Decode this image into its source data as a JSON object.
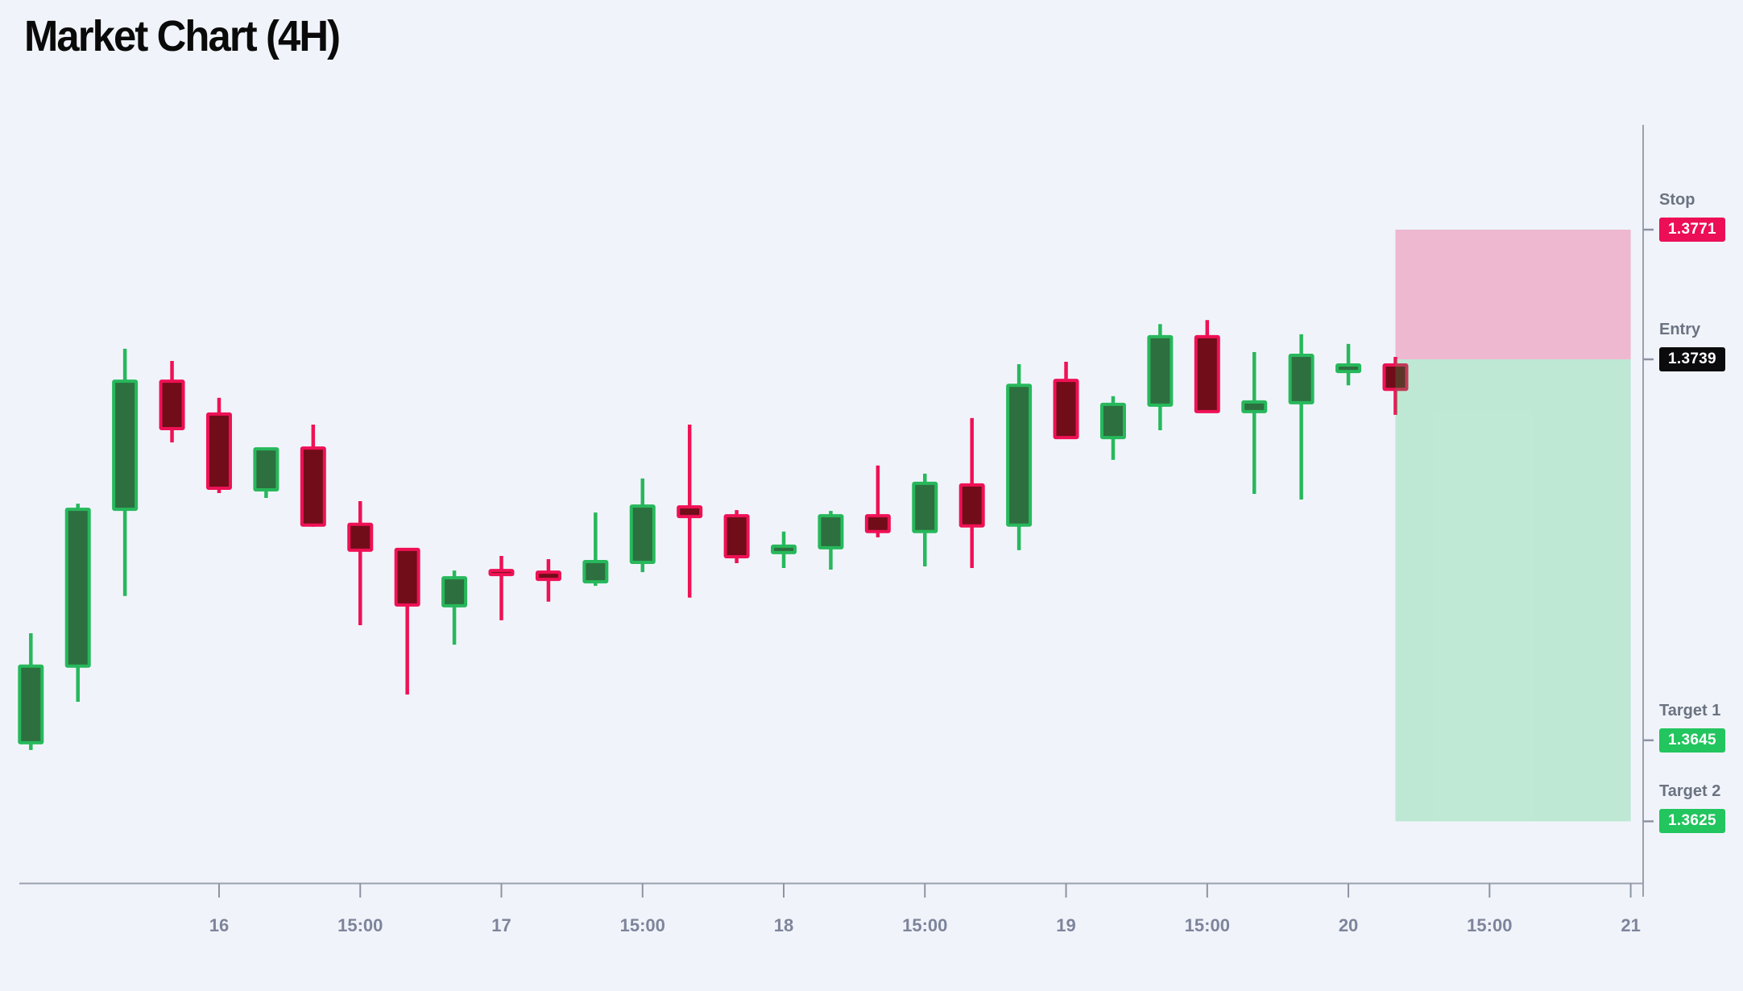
{
  "title": "Market Chart (4H)",
  "colors": {
    "background": "#f0f4fa",
    "title_color": "#0a0a0a",
    "up_fill": "#2d6f3f",
    "up_stroke": "#27b85c",
    "down_fill": "#700d19",
    "down_stroke": "#ef1155",
    "risk_zone": "rgba(233,30,99,0.28)",
    "reward_zone": "rgba(34,197,94,0.24)",
    "axis_line": "#9aa0af",
    "axis_tick": "#8d93a3",
    "tick_label": "#7e849b",
    "level_label": "#6b7280",
    "badge_stop": "#ec0e56",
    "badge_entry": "#0b0b0e",
    "badge_target": "#22c55e",
    "badge_text": "#ffffff"
  },
  "chart_data": {
    "type": "candlestick",
    "timeframe": "4H",
    "title": "Market Chart (4H)",
    "x_ticks": [
      {
        "i": 4,
        "label": "16"
      },
      {
        "i": 7,
        "label": "15:00"
      },
      {
        "i": 10,
        "label": "17"
      },
      {
        "i": 13,
        "label": "15:00"
      },
      {
        "i": 16,
        "label": "18"
      },
      {
        "i": 19,
        "label": "15:00"
      },
      {
        "i": 22,
        "label": "19"
      },
      {
        "i": 25,
        "label": "15:00"
      },
      {
        "i": 28,
        "label": "20"
      },
      {
        "i": 31,
        "label": "15:00"
      },
      {
        "i": 34,
        "label": "21"
      }
    ],
    "candles": [
      {
        "o": 1.36444,
        "h": 1.36714,
        "l": 1.36426,
        "c": 1.36633
      },
      {
        "o": 1.36633,
        "h": 1.37034,
        "l": 1.36545,
        "c": 1.3702
      },
      {
        "o": 1.3702,
        "h": 1.37416,
        "l": 1.36806,
        "c": 1.37336
      },
      {
        "o": 1.37336,
        "h": 1.37386,
        "l": 1.37185,
        "c": 1.37219
      },
      {
        "o": 1.37255,
        "h": 1.37295,
        "l": 1.3706,
        "c": 1.37072
      },
      {
        "o": 1.37068,
        "h": 1.37169,
        "l": 1.37048,
        "c": 1.37169
      },
      {
        "o": 1.37171,
        "h": 1.37229,
        "l": 1.36977,
        "c": 1.36981
      },
      {
        "o": 1.36983,
        "h": 1.3704,
        "l": 1.36734,
        "c": 1.36919
      },
      {
        "o": 1.36921,
        "h": 1.36921,
        "l": 1.36563,
        "c": 1.36784
      },
      {
        "o": 1.36782,
        "h": 1.36869,
        "l": 1.36686,
        "c": 1.36851
      },
      {
        "o": 1.36869,
        "h": 1.36905,
        "l": 1.36746,
        "c": 1.36859
      },
      {
        "o": 1.36865,
        "h": 1.36897,
        "l": 1.36792,
        "c": 1.36847
      },
      {
        "o": 1.36841,
        "h": 1.37012,
        "l": 1.36831,
        "c": 1.36891
      },
      {
        "o": 1.36889,
        "h": 1.37096,
        "l": 1.36865,
        "c": 1.37028
      },
      {
        "o": 1.37026,
        "h": 1.37229,
        "l": 1.36802,
        "c": 1.37002
      },
      {
        "o": 1.37004,
        "h": 1.37018,
        "l": 1.36887,
        "c": 1.36903
      },
      {
        "o": 1.36913,
        "h": 1.36965,
        "l": 1.36875,
        "c": 1.36929
      },
      {
        "o": 1.36925,
        "h": 1.37016,
        "l": 1.36871,
        "c": 1.37004
      },
      {
        "o": 1.37004,
        "h": 1.37128,
        "l": 1.36951,
        "c": 1.36965
      },
      {
        "o": 1.36965,
        "h": 1.37108,
        "l": 1.36879,
        "c": 1.37084
      },
      {
        "o": 1.3708,
        "h": 1.37245,
        "l": 1.36875,
        "c": 1.36979
      },
      {
        "o": 1.36981,
        "h": 1.37378,
        "l": 1.36919,
        "c": 1.37326
      },
      {
        "o": 1.37338,
        "h": 1.37384,
        "l": 1.37197,
        "c": 1.37197
      },
      {
        "o": 1.37197,
        "h": 1.37299,
        "l": 1.37142,
        "c": 1.37279
      },
      {
        "o": 1.37277,
        "h": 1.37477,
        "l": 1.37215,
        "c": 1.37446
      },
      {
        "o": 1.37446,
        "h": 1.37487,
        "l": 1.37261,
        "c": 1.37261
      },
      {
        "o": 1.37261,
        "h": 1.37408,
        "l": 1.37058,
        "c": 1.37285
      },
      {
        "o": 1.37283,
        "h": 1.37452,
        "l": 1.37044,
        "c": 1.374
      },
      {
        "o": 1.3736,
        "h": 1.37428,
        "l": 1.37326,
        "c": 1.37376
      },
      {
        "o": 1.37376,
        "h": 1.37396,
        "l": 1.37253,
        "c": 1.37316
      }
    ],
    "levels": [
      {
        "id": "stop",
        "label": "Stop",
        "price": 1.3771,
        "display": "1.3771",
        "badge": "badge_stop"
      },
      {
        "id": "entry",
        "label": "Entry",
        "price": 1.3739,
        "display": "1.3739",
        "badge": "badge_entry"
      },
      {
        "id": "target1",
        "label": "Target 1",
        "price": 1.3645,
        "display": "1.3645",
        "badge": "badge_target"
      },
      {
        "id": "target2",
        "label": "Target 2",
        "price": 1.3625,
        "display": "1.3625",
        "badge": "badge_target"
      }
    ],
    "zones": [
      {
        "id": "risk",
        "top_price": 1.3771,
        "bottom_price": 1.3739,
        "from_candle": 29,
        "to_tick": 34,
        "color": "risk_zone"
      },
      {
        "id": "reward",
        "top_price": 1.3739,
        "bottom_price": 1.3625,
        "from_candle": 29,
        "to_tick": 34,
        "color": "reward_zone"
      }
    ]
  }
}
